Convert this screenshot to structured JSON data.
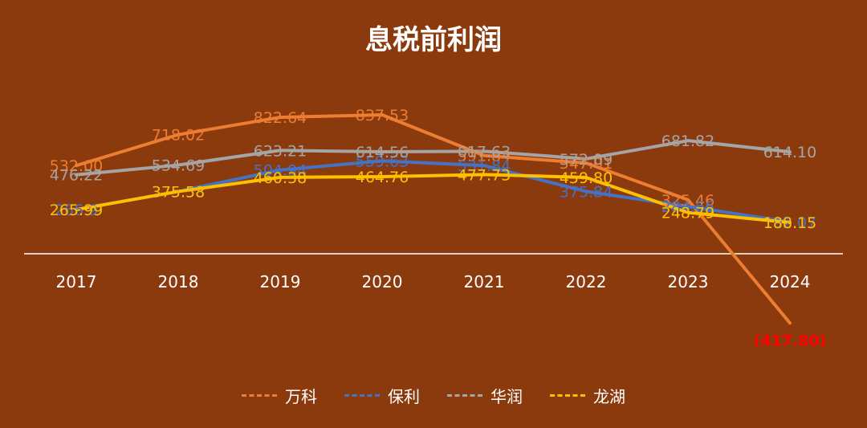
{
  "chart_data": {
    "type": "line",
    "title": "息税前利润",
    "categories": [
      "2017",
      "2018",
      "2019",
      "2020",
      "2021",
      "2022",
      "2023",
      "2024"
    ],
    "series": [
      {
        "name": "万科",
        "color": "#ED7D31",
        "values": [
          532.0,
          718.02,
          822.64,
          837.53,
          591.84,
          547.01,
          325.46,
          -417.8
        ],
        "labels": [
          "532.00",
          "718.02",
          "822.64",
          "837.53",
          "591.84",
          "547.01",
          "325.46",
          "(417.80)"
        ]
      },
      {
        "name": "保利",
        "color": "#4472C4",
        "values": [
          266.9,
          375.58,
          504.94,
          559.63,
          531.84,
          375.84,
          284.66,
          192.07
        ],
        "labels": [
          "266.9",
          "375.58",
          "504.94",
          "559.63",
          "531.84",
          "375.84",
          "284.66",
          "192.07"
        ]
      },
      {
        "name": "华润",
        "color": "#A5A5A5",
        "values": [
          476.22,
          534.69,
          623.21,
          614.56,
          617.63,
          572.09,
          681.82,
          614.1
        ],
        "labels": [
          "476.22",
          "534.69",
          "623.21",
          "614.56",
          "617.63",
          "572.09",
          "681.82",
          "614.10"
        ]
      },
      {
        "name": "龙湖",
        "color": "#FFC000",
        "values": [
          265.99,
          375.58,
          460.38,
          464.76,
          477.73,
          459.8,
          248.79,
          188.15
        ],
        "labels": [
          "265.99",
          "375.58",
          "460.38",
          "464.76",
          "477.73",
          "459.80",
          "248.79",
          "188.15"
        ]
      }
    ],
    "negative_label_color": "#FF0000",
    "ylim": [
      -450,
      950
    ],
    "grid": false,
    "legend_position": "bottom"
  }
}
